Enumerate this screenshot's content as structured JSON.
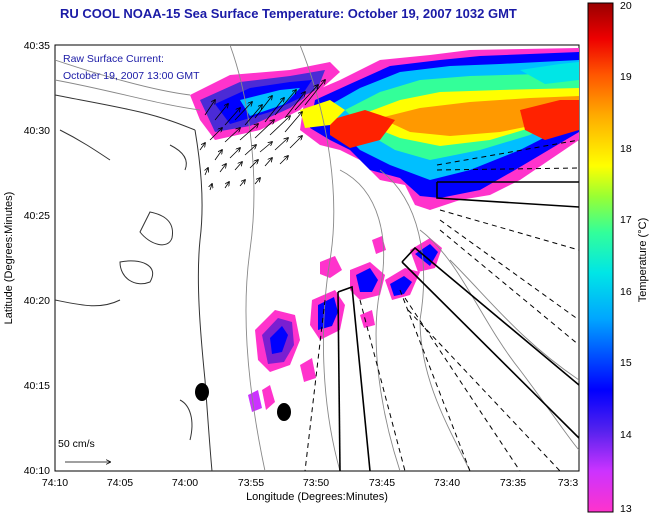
{
  "title": "RU COOL  NOAA-15  Sea Surface Temperature:  October 19, 2007 1032 GMT",
  "annotation": {
    "line1": "Raw Surface Current:",
    "line2": "October 19, 2007 13:00 GMT"
  },
  "scale_label": "50 cm/s",
  "xlabel": "Longitude (Degrees:Minutes)",
  "ylabel": "Latitude (Degrees:Minutes)",
  "x_ticks": [
    "74:10",
    "74:05",
    "74:00",
    "73:55",
    "73:50",
    "73:45",
    "73:40",
    "73:35",
    "73:3"
  ],
  "y_ticks": [
    "40:35",
    "40:30",
    "40:25",
    "40:20",
    "40:15",
    "40:10"
  ],
  "colorbar": {
    "label": "Temperature (°C)",
    "ticks": [
      "20",
      "19",
      "18",
      "17",
      "16",
      "15",
      "14",
      "13"
    ],
    "colors": [
      "#ff33cc",
      "#7a1fd1",
      "#0000ff",
      "#00a6ff",
      "#00e6e6",
      "#66ff66",
      "#ffff00",
      "#ff9900",
      "#ff0000",
      "#990000"
    ]
  },
  "colors": {
    "title": "#1a1aa6",
    "coast": "#333333",
    "bathymetry": "#888888"
  }
}
